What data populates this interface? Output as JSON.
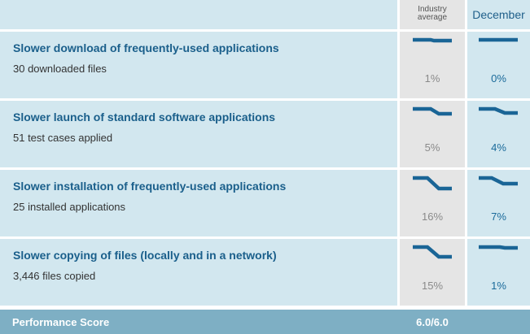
{
  "header": {
    "industry_label": "Industry average",
    "december_label": "December"
  },
  "rows": [
    {
      "title": "Slower download of frequently-used applications",
      "subtitle": "30 downloaded files",
      "industry_value": "1%",
      "december_value": "0%"
    },
    {
      "title": "Slower launch of standard software applications",
      "subtitle": "51 test cases applied",
      "industry_value": "5%",
      "december_value": "4%"
    },
    {
      "title": "Slower installation of frequently-used applications",
      "subtitle": "25 installed applications",
      "industry_value": "16%",
      "december_value": "7%"
    },
    {
      "title": "Slower copying of files (locally and in a network)",
      "subtitle": "3,446 files copied",
      "industry_value": "15%",
      "december_value": "1%"
    }
  ],
  "footer": {
    "label": "Performance Score",
    "score": "6.0/6.0"
  },
  "colors": {
    "accent": "#1a6596",
    "row_bg": "#d2e7ef",
    "industry_bg": "#e5e5e5",
    "footer_bg": "#7eafc4"
  }
}
